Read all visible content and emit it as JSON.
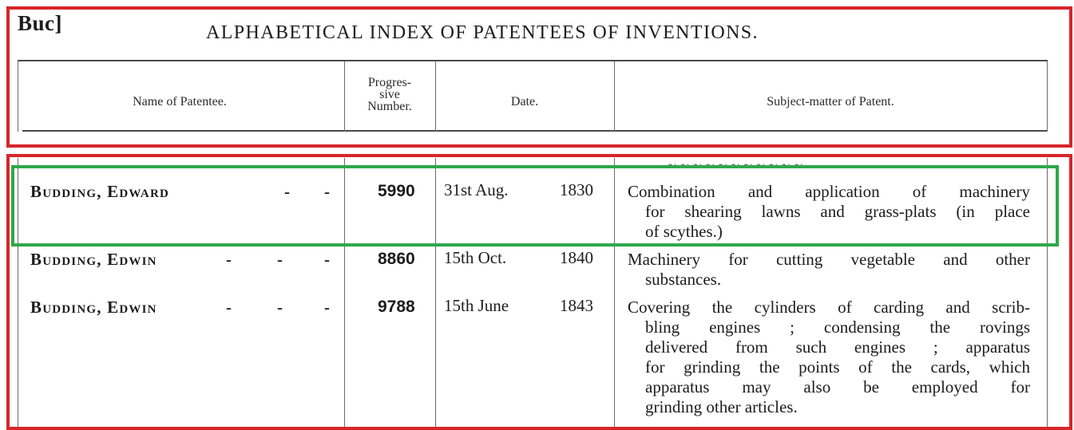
{
  "header": {
    "code": "Buc]",
    "title": "ALPHABETICAL INDEX OF PATENTEES OF INVENTIONS."
  },
  "columns": {
    "name": "Name of Patentee.",
    "progressive": [
      "Progres-",
      "sive",
      "Number."
    ],
    "date": "Date.",
    "subject": "Subject-matter of Patent."
  },
  "entries": [
    {
      "name": "Budding, Edward",
      "number": "5990",
      "date": "31st Aug.",
      "year": "1830",
      "subject_lines": [
        "Combination and application of machinery",
        "for shearing lawns and grass-plats (in place",
        "of scythes.)"
      ]
    },
    {
      "name": "Budding, Edwin",
      "number": "8860",
      "date": "15th Oct.",
      "year": "1840",
      "subject_lines": [
        "Machinery for cutting vegetable and other",
        "substances."
      ]
    },
    {
      "name": "Budding, Edwin",
      "number": "9788",
      "date": "15th June",
      "year": "1843",
      "subject_lines": [
        "Covering the cylinders of carding and scrib-",
        "bling engines ; condensing the rovings",
        "delivered from such engines ; apparatus",
        "for grinding the points of the cards, which",
        "apparatus may also be employed for",
        "grinding other articles."
      ]
    }
  ],
  "highlight_colors": {
    "region": "#d6262a",
    "selected_entry": "#2ea84a"
  }
}
